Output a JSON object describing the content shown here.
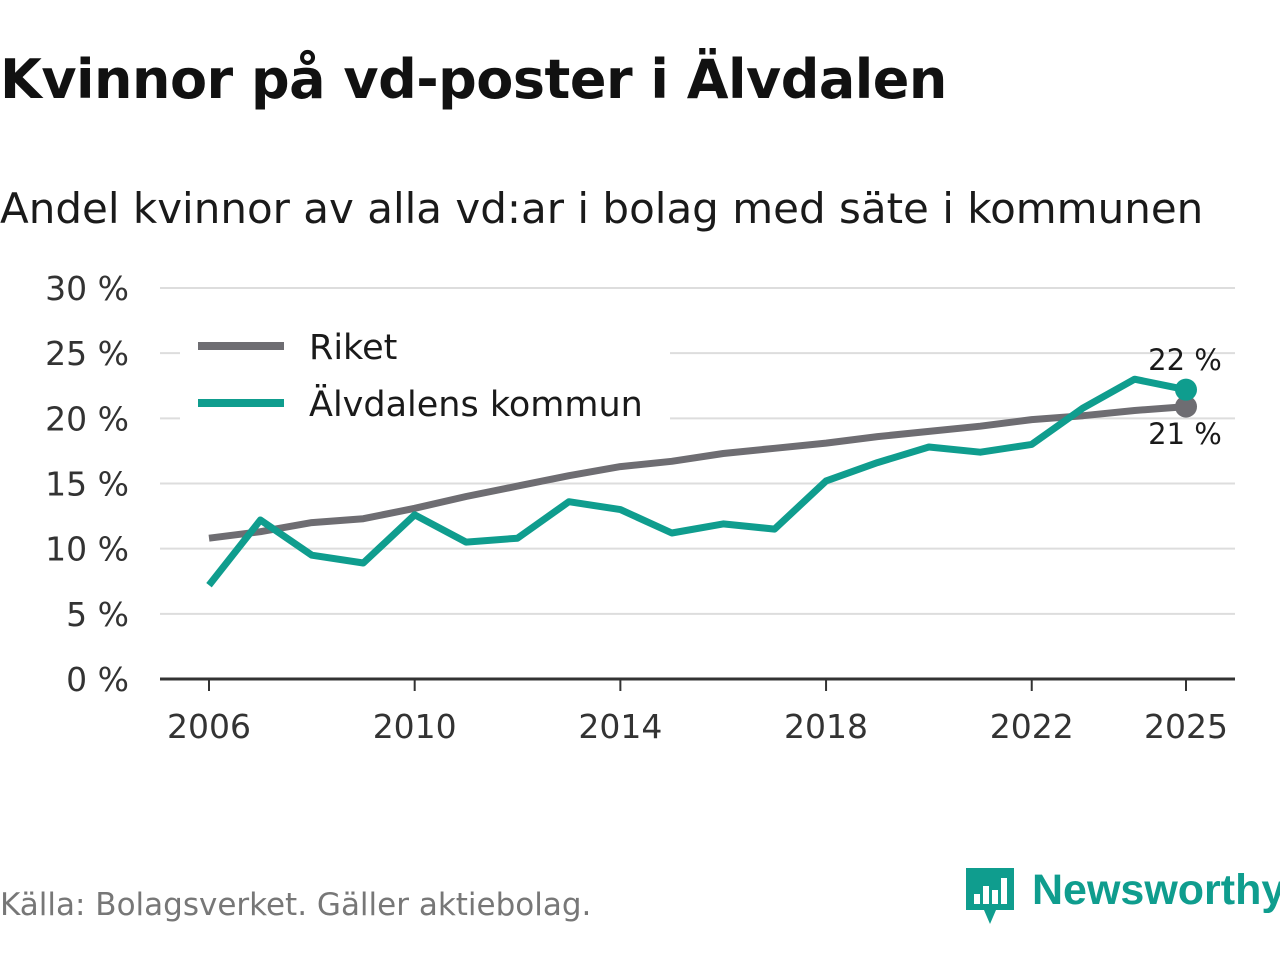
{
  "title": "Kvinnor på vd-poster i Älvdalen",
  "subtitle": "Andel kvinnor av alla vd:ar i bolag med säte i kommunen",
  "source": "Källa: Bolagsverket. Gäller aktiebolag.",
  "brand": "Newsworthy",
  "colors": {
    "riket": "#6e6d72",
    "kommun": "#0f9d8e",
    "grid": "#dddddd",
    "axis": "#333333"
  },
  "chart_data": {
    "type": "line",
    "x": [
      2006,
      2007,
      2008,
      2009,
      2010,
      2011,
      2012,
      2013,
      2014,
      2015,
      2016,
      2017,
      2018,
      2019,
      2020,
      2021,
      2022,
      2023,
      2024,
      2025
    ],
    "xticks": [
      2006,
      2010,
      2014,
      2018,
      2022,
      2025
    ],
    "xtick_labels": [
      "2006",
      "2010",
      "2014",
      "2018",
      "2022",
      "2025"
    ],
    "yticks": [
      0,
      5,
      10,
      15,
      20,
      25,
      30
    ],
    "ytick_labels": [
      "0 %",
      "5 %",
      "10 %",
      "15 %",
      "20 %",
      "25 %",
      "30 %"
    ],
    "ylim": [
      0,
      30
    ],
    "xlim": [
      2006,
      2025
    ],
    "ylabel": "",
    "xlabel": "",
    "grid": true,
    "legend_position": "top-left",
    "series": [
      {
        "name": "Riket",
        "key": "riket",
        "values": [
          10.8,
          11.3,
          12.0,
          12.3,
          13.1,
          14.0,
          14.8,
          15.6,
          16.3,
          16.7,
          17.3,
          17.7,
          18.1,
          18.6,
          19.0,
          19.4,
          19.9,
          20.2,
          20.6,
          20.9
        ],
        "end_label": "21 %"
      },
      {
        "name": "Älvdalens kommun",
        "key": "kommun",
        "values": [
          7.2,
          12.2,
          9.5,
          8.9,
          12.6,
          10.5,
          10.8,
          13.6,
          13.0,
          11.2,
          11.9,
          11.5,
          15.2,
          16.6,
          17.8,
          17.4,
          18.0,
          20.8,
          23.0,
          22.2
        ],
        "end_label": "22 %"
      }
    ]
  }
}
